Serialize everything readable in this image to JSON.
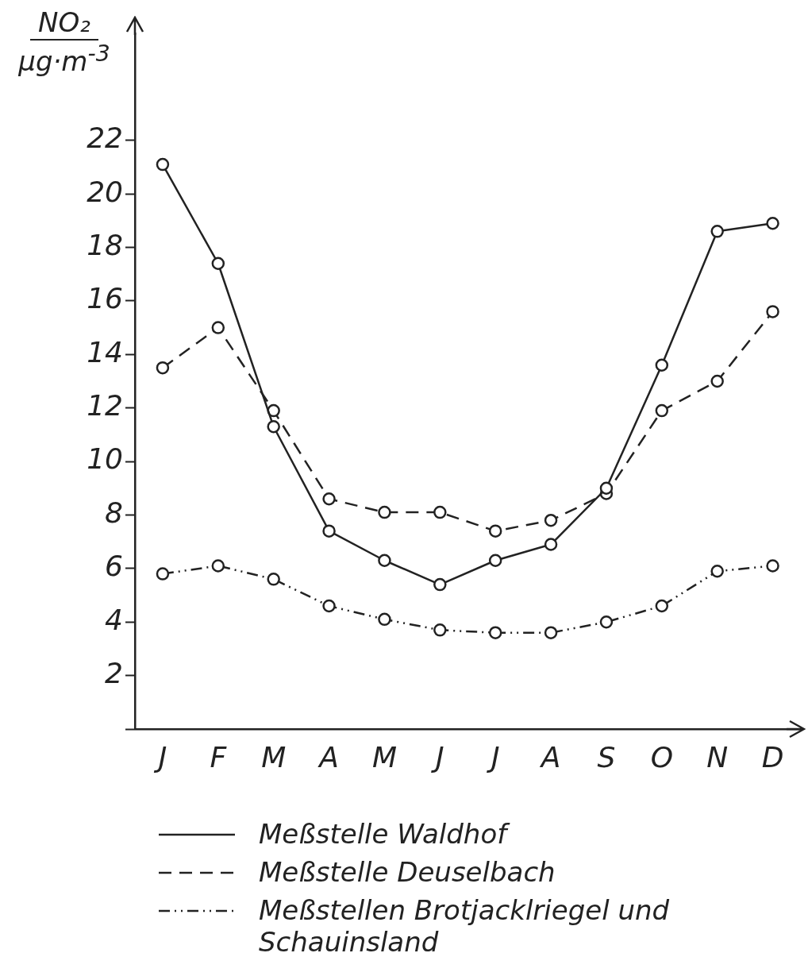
{
  "chart_data": {
    "type": "line",
    "ylabel": "NO₂ µg·m$^{-3}$",
    "categories": [
      "J",
      "F",
      "M",
      "A",
      "M",
      "J",
      "J",
      "A",
      "S",
      "O",
      "N",
      "D"
    ],
    "ylim": [
      0,
      26
    ],
    "yticks": [
      {
        "value": 0,
        "label": null
      },
      2,
      4,
      6,
      8,
      10,
      12,
      14,
      16,
      18,
      20,
      22
    ],
    "grid": false,
    "legend": "bottom",
    "marker": "circle",
    "series": [
      {
        "name": "Meßstelle Waldhof",
        "color": "#222222",
        "line_style": "solid",
        "values": [
          21.1,
          17.4,
          11.3,
          7.4,
          6.3,
          5.4,
          6.3,
          6.9,
          9.0,
          13.6,
          18.6,
          18.9
        ]
      },
      {
        "name": "Meßstelle Deuselbach",
        "color": "#222222",
        "line_style": "dashed",
        "values": [
          13.5,
          15.0,
          11.9,
          8.6,
          8.1,
          8.1,
          7.4,
          7.8,
          8.8,
          11.9,
          13.0,
          15.6
        ]
      },
      {
        "name": "Meßstellen Brotjacklriegel und Schauinsland",
        "color": "#222222",
        "line_style": "dotted",
        "values": [
          5.8,
          6.1,
          5.6,
          4.6,
          4.1,
          3.7,
          3.6,
          3.6,
          4.0,
          4.6,
          5.9,
          6.1
        ]
      }
    ]
  }
}
